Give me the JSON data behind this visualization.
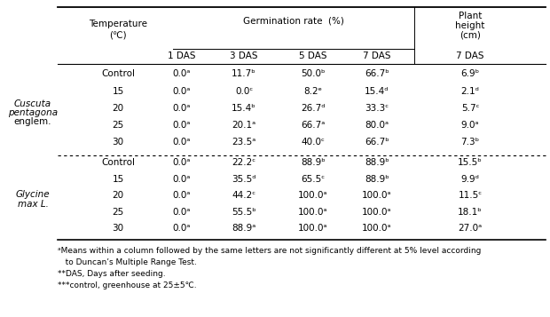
{
  "col_headers_sub": [
    "1 DAS",
    "3 DAS",
    "5 DAS",
    "7 DAS",
    "7 DAS"
  ],
  "group1_species_lines": [
    "Cuscuta",
    "pentagona",
    "englem."
  ],
  "group2_species_lines": [
    "Glycine",
    "max L."
  ],
  "rows_group1": [
    [
      "Control",
      "0.0ᵃ",
      "11.7ᵇ",
      "50.0ᵇ",
      "66.7ᵇ",
      "6.9ᵇ"
    ],
    [
      "15",
      "0.0ᵃ",
      "0.0ᶜ",
      "8.2ᵉ",
      "15.4ᵈ",
      "2.1ᵈ"
    ],
    [
      "20",
      "0.0ᵃ",
      "15.4ᵇ",
      "26.7ᵈ",
      "33.3ᶜ",
      "5.7ᶜ"
    ],
    [
      "25",
      "0.0ᵃ",
      "20.1ᵃ",
      "66.7ᵃ",
      "80.0ᵃ",
      "9.0ᵃ"
    ],
    [
      "30",
      "0.0ᵃ",
      "23.5ᵃ",
      "40.0ᶜ",
      "66.7ᵇ",
      "7.3ᵇ"
    ]
  ],
  "rows_group2": [
    [
      "Control",
      "0.0ᵃ",
      "22.2ᶜ",
      "88.9ᵇ",
      "88.9ᵇ",
      "15.5ᵇ"
    ],
    [
      "15",
      "0.0ᵃ",
      "35.5ᵈ",
      "65.5ᶜ",
      "88.9ᵇ",
      "9.9ᵈ"
    ],
    [
      "20",
      "0.0ᵃ",
      "44.2ᶜ",
      "100.0ᵃ",
      "100.0ᵃ",
      "11.5ᶜ"
    ],
    [
      "25",
      "0.0ᵃ",
      "55.5ᵇ",
      "100.0ᵃ",
      "100.0ᵃ",
      "18.1ᵇ"
    ],
    [
      "30",
      "0.0ᵃ",
      "88.9ᵃ",
      "100.0ᵃ",
      "100.0ᵃ",
      "27.0ᵃ"
    ]
  ],
  "footnote1": "ᵃMeans within a column followed by the same letters are not significantly different at 5% level according",
  "footnote2": "   to Duncan’s Multiple Range Test.",
  "footnote3": "**DAS, Days after seeding.",
  "footnote4": "***control, greenhouse at 25±5℃.",
  "bg_color": "#ffffff",
  "text_color": "#000000",
  "fs": 7.5,
  "fs_fn": 6.5
}
